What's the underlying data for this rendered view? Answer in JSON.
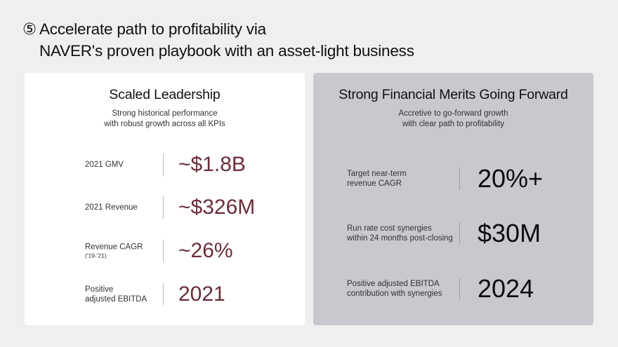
{
  "header": {
    "number_symbol": "⑤",
    "title_line1": "Accelerate path to profitability via",
    "title_line2": "NAVER's proven playbook with an asset-light business"
  },
  "left_panel": {
    "title": "Scaled Leadership",
    "subtitle_lines": [
      "Strong historical performance",
      "with robust growth across all KPIs"
    ],
    "metrics": [
      {
        "label_lines": [
          "2021 GMV"
        ],
        "note": "",
        "value": "~$1.8B"
      },
      {
        "label_lines": [
          "2021 Revenue"
        ],
        "note": "",
        "value": "~$326M"
      },
      {
        "label_lines": [
          "Revenue CAGR"
        ],
        "note": "('19-'21)",
        "value": "~26%"
      },
      {
        "label_lines": [
          "Positive",
          "adjusted EBITDA"
        ],
        "note": "",
        "value": "2021"
      }
    ]
  },
  "right_panel": {
    "title": "Strong Financial Merits Going Forward",
    "subtitle_lines": [
      "Accretive to go-forward growth",
      "with clear path to profitability"
    ],
    "metrics": [
      {
        "label_lines": [
          "Target near-term",
          "revenue CAGR"
        ],
        "value": "20%+"
      },
      {
        "label_lines": [
          "Run rate cost synergies",
          "within 24 months post-closing"
        ],
        "value": "$30M"
      },
      {
        "label_lines": [
          "Positive adjusted EBITDA",
          "contribution with synergies"
        ],
        "value": "2024"
      }
    ]
  },
  "colors": {
    "background": "#efeff0",
    "left_panel": "#ffffff",
    "right_panel": "#c8c8ce",
    "left_value": "#6b2d3a",
    "right_value": "#0d0d0d"
  }
}
